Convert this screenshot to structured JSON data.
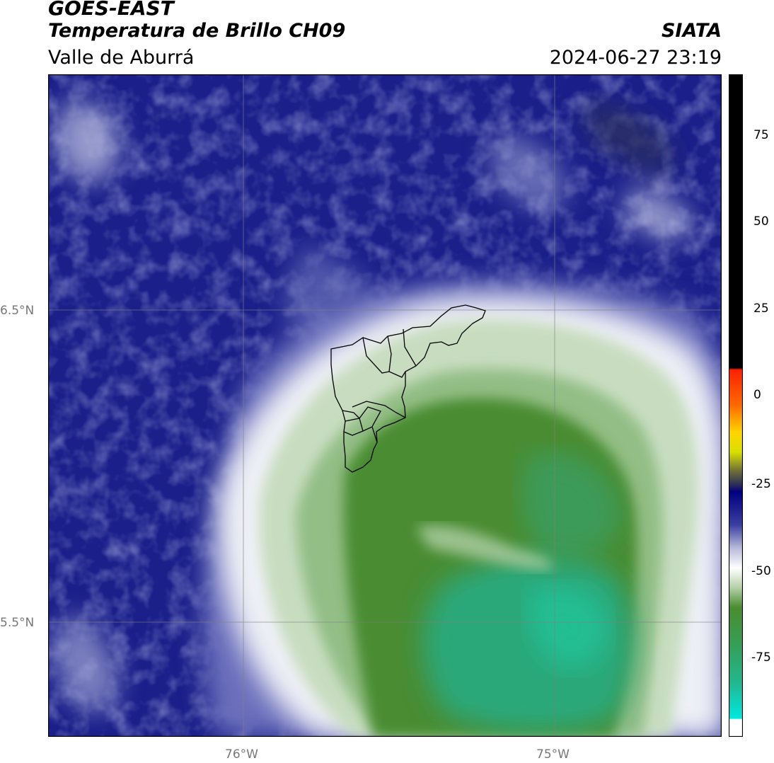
{
  "header": {
    "satellite": "GOES-EAST",
    "product": "Temperatura de Brillo CH09",
    "region": "Valle de Aburrá",
    "agency": "SIATA",
    "datetime": "2024-06-27 23:19"
  },
  "map": {
    "lat_labels": [
      "6.5°N",
      "5.5°N"
    ],
    "lon_labels": [
      "76°W",
      "75°W"
    ],
    "overlay": "municipal boundaries of Valle de Aburrá"
  },
  "colorbar": {
    "ticks": [
      "75",
      "50",
      "25",
      "0",
      "-25",
      "-50",
      "-75"
    ],
    "colors": {
      "black": "#000000",
      "red": "#ff2000",
      "orange": "#ff8000",
      "yellow": "#ffff00",
      "navy": "#000080",
      "light": "#ffffff",
      "green": "#3a8a2e",
      "teal": "#1ec8a0",
      "cyan": "#00e8e0"
    }
  }
}
